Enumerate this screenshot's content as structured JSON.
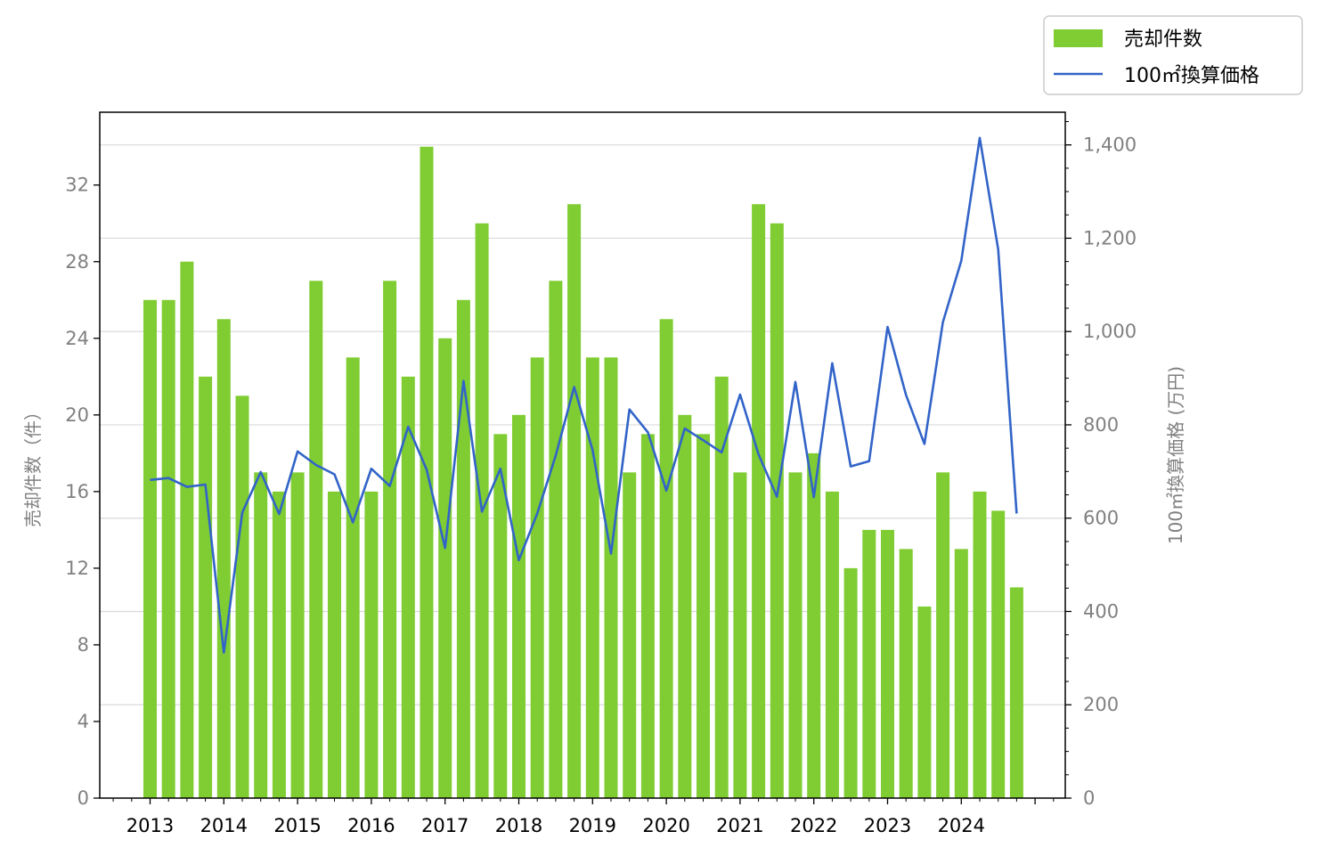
{
  "colors": {
    "bar": "#7fcd32",
    "line": "#3264c8",
    "grid": "#d9d9d9",
    "axis": "#000000",
    "tick_text": "#808080"
  },
  "chart_data": {
    "type": "bar+line",
    "title": "",
    "x_ticks": [
      "2013",
      "2014",
      "2015",
      "2016",
      "2017",
      "2018",
      "2019",
      "2020",
      "2021",
      "2022",
      "2023",
      "2024"
    ],
    "quarters": [
      "2013Q1",
      "2013Q2",
      "2013Q3",
      "2013Q4",
      "2014Q1",
      "2014Q2",
      "2014Q3",
      "2014Q4",
      "2015Q1",
      "2015Q2",
      "2015Q3",
      "2015Q4",
      "2016Q1",
      "2016Q2",
      "2016Q3",
      "2016Q4",
      "2017Q1",
      "2017Q2",
      "2017Q3",
      "2017Q4",
      "2018Q1",
      "2018Q2",
      "2018Q3",
      "2018Q4",
      "2019Q1",
      "2019Q2",
      "2019Q3",
      "2019Q4",
      "2020Q1",
      "2020Q2",
      "2020Q3",
      "2020Q4",
      "2021Q1",
      "2021Q2",
      "2021Q3",
      "2021Q4",
      "2022Q1",
      "2022Q2",
      "2022Q3",
      "2022Q4",
      "2023Q1",
      "2023Q2",
      "2023Q3",
      "2023Q4",
      "2024Q1",
      "2024Q2",
      "2024Q3",
      "2024Q4"
    ],
    "series": [
      {
        "name": "売却件数",
        "type": "bar",
        "axis": "left",
        "values": [
          26,
          26,
          28,
          22,
          25,
          21,
          17,
          16,
          17,
          27,
          16,
          23,
          16,
          27,
          22,
          34,
          24,
          26,
          30,
          19,
          20,
          23,
          27,
          31,
          23,
          23,
          17,
          19,
          25,
          20,
          19,
          22,
          17,
          31,
          30,
          17,
          18,
          16,
          12,
          14,
          14,
          13,
          10,
          17,
          13,
          16,
          15,
          11
        ]
      },
      {
        "name": "100㎡換算価格",
        "type": "line",
        "axis": "right",
        "values": [
          682,
          686,
          667,
          672,
          312,
          612,
          699,
          609,
          743,
          714,
          694,
          591,
          706,
          669,
          796,
          704,
          536,
          894,
          614,
          706,
          510,
          610,
          734,
          881,
          746,
          524,
          833,
          784,
          659,
          792,
          767,
          741,
          865,
          737,
          646,
          892,
          645,
          932,
          711,
          722,
          1010,
          864,
          759,
          1020,
          1152,
          1415,
          1176,
          610
        ]
      }
    ],
    "y_left": {
      "label": "売却件数（件）",
      "ticks": [
        0,
        4,
        8,
        12,
        16,
        20,
        24,
        28,
        32
      ],
      "min": 0,
      "max": 35.8
    },
    "y_right": {
      "label": "100㎡換算価格 (万円)",
      "ticks": [
        0,
        200,
        400,
        600,
        800,
        1000,
        1200,
        1400
      ],
      "tick_labels": [
        "0",
        "200",
        "400",
        "600",
        "800",
        "1,000",
        "1,200",
        "1,400"
      ],
      "min": 0,
      "max": 1470
    },
    "grid": "horizontal (right axis)",
    "legend": "top-right, outside plot"
  }
}
